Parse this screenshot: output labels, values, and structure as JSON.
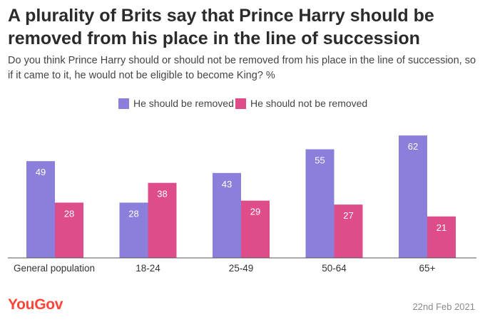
{
  "header": {
    "title": "A plurality of Brits say that Prince Harry should be removed from his place in the line of succession",
    "subtitle": "Do you think Prince Harry should or should not be removed from his place in the line of succession, so if it came to it, he would not be eligible to become King? %"
  },
  "chart_data": {
    "type": "bar",
    "title": "A plurality of Brits say that Prince Harry should be removed from his place in the line of succession",
    "subtitle": "Do you think Prince Harry should or should not be removed from his place in the line of succession, so if it came to it, he would not be eligible to become King? %",
    "categories": [
      "General population",
      "18-24",
      "25-49",
      "50-64",
      "65+"
    ],
    "series": [
      {
        "name": "He should be removed",
        "values": [
          49,
          28,
          43,
          55,
          62
        ],
        "color": "#8a7fdb"
      },
      {
        "name": "He should not be removed",
        "values": [
          28,
          38,
          29,
          27,
          21
        ],
        "color": "#de4c8a"
      }
    ],
    "ylim": [
      0,
      70
    ],
    "grid": false,
    "legend_position": "top-center",
    "data_labels": "inside-top"
  },
  "footer": {
    "brand": "YouGov",
    "date": "22nd Feb 2021"
  }
}
